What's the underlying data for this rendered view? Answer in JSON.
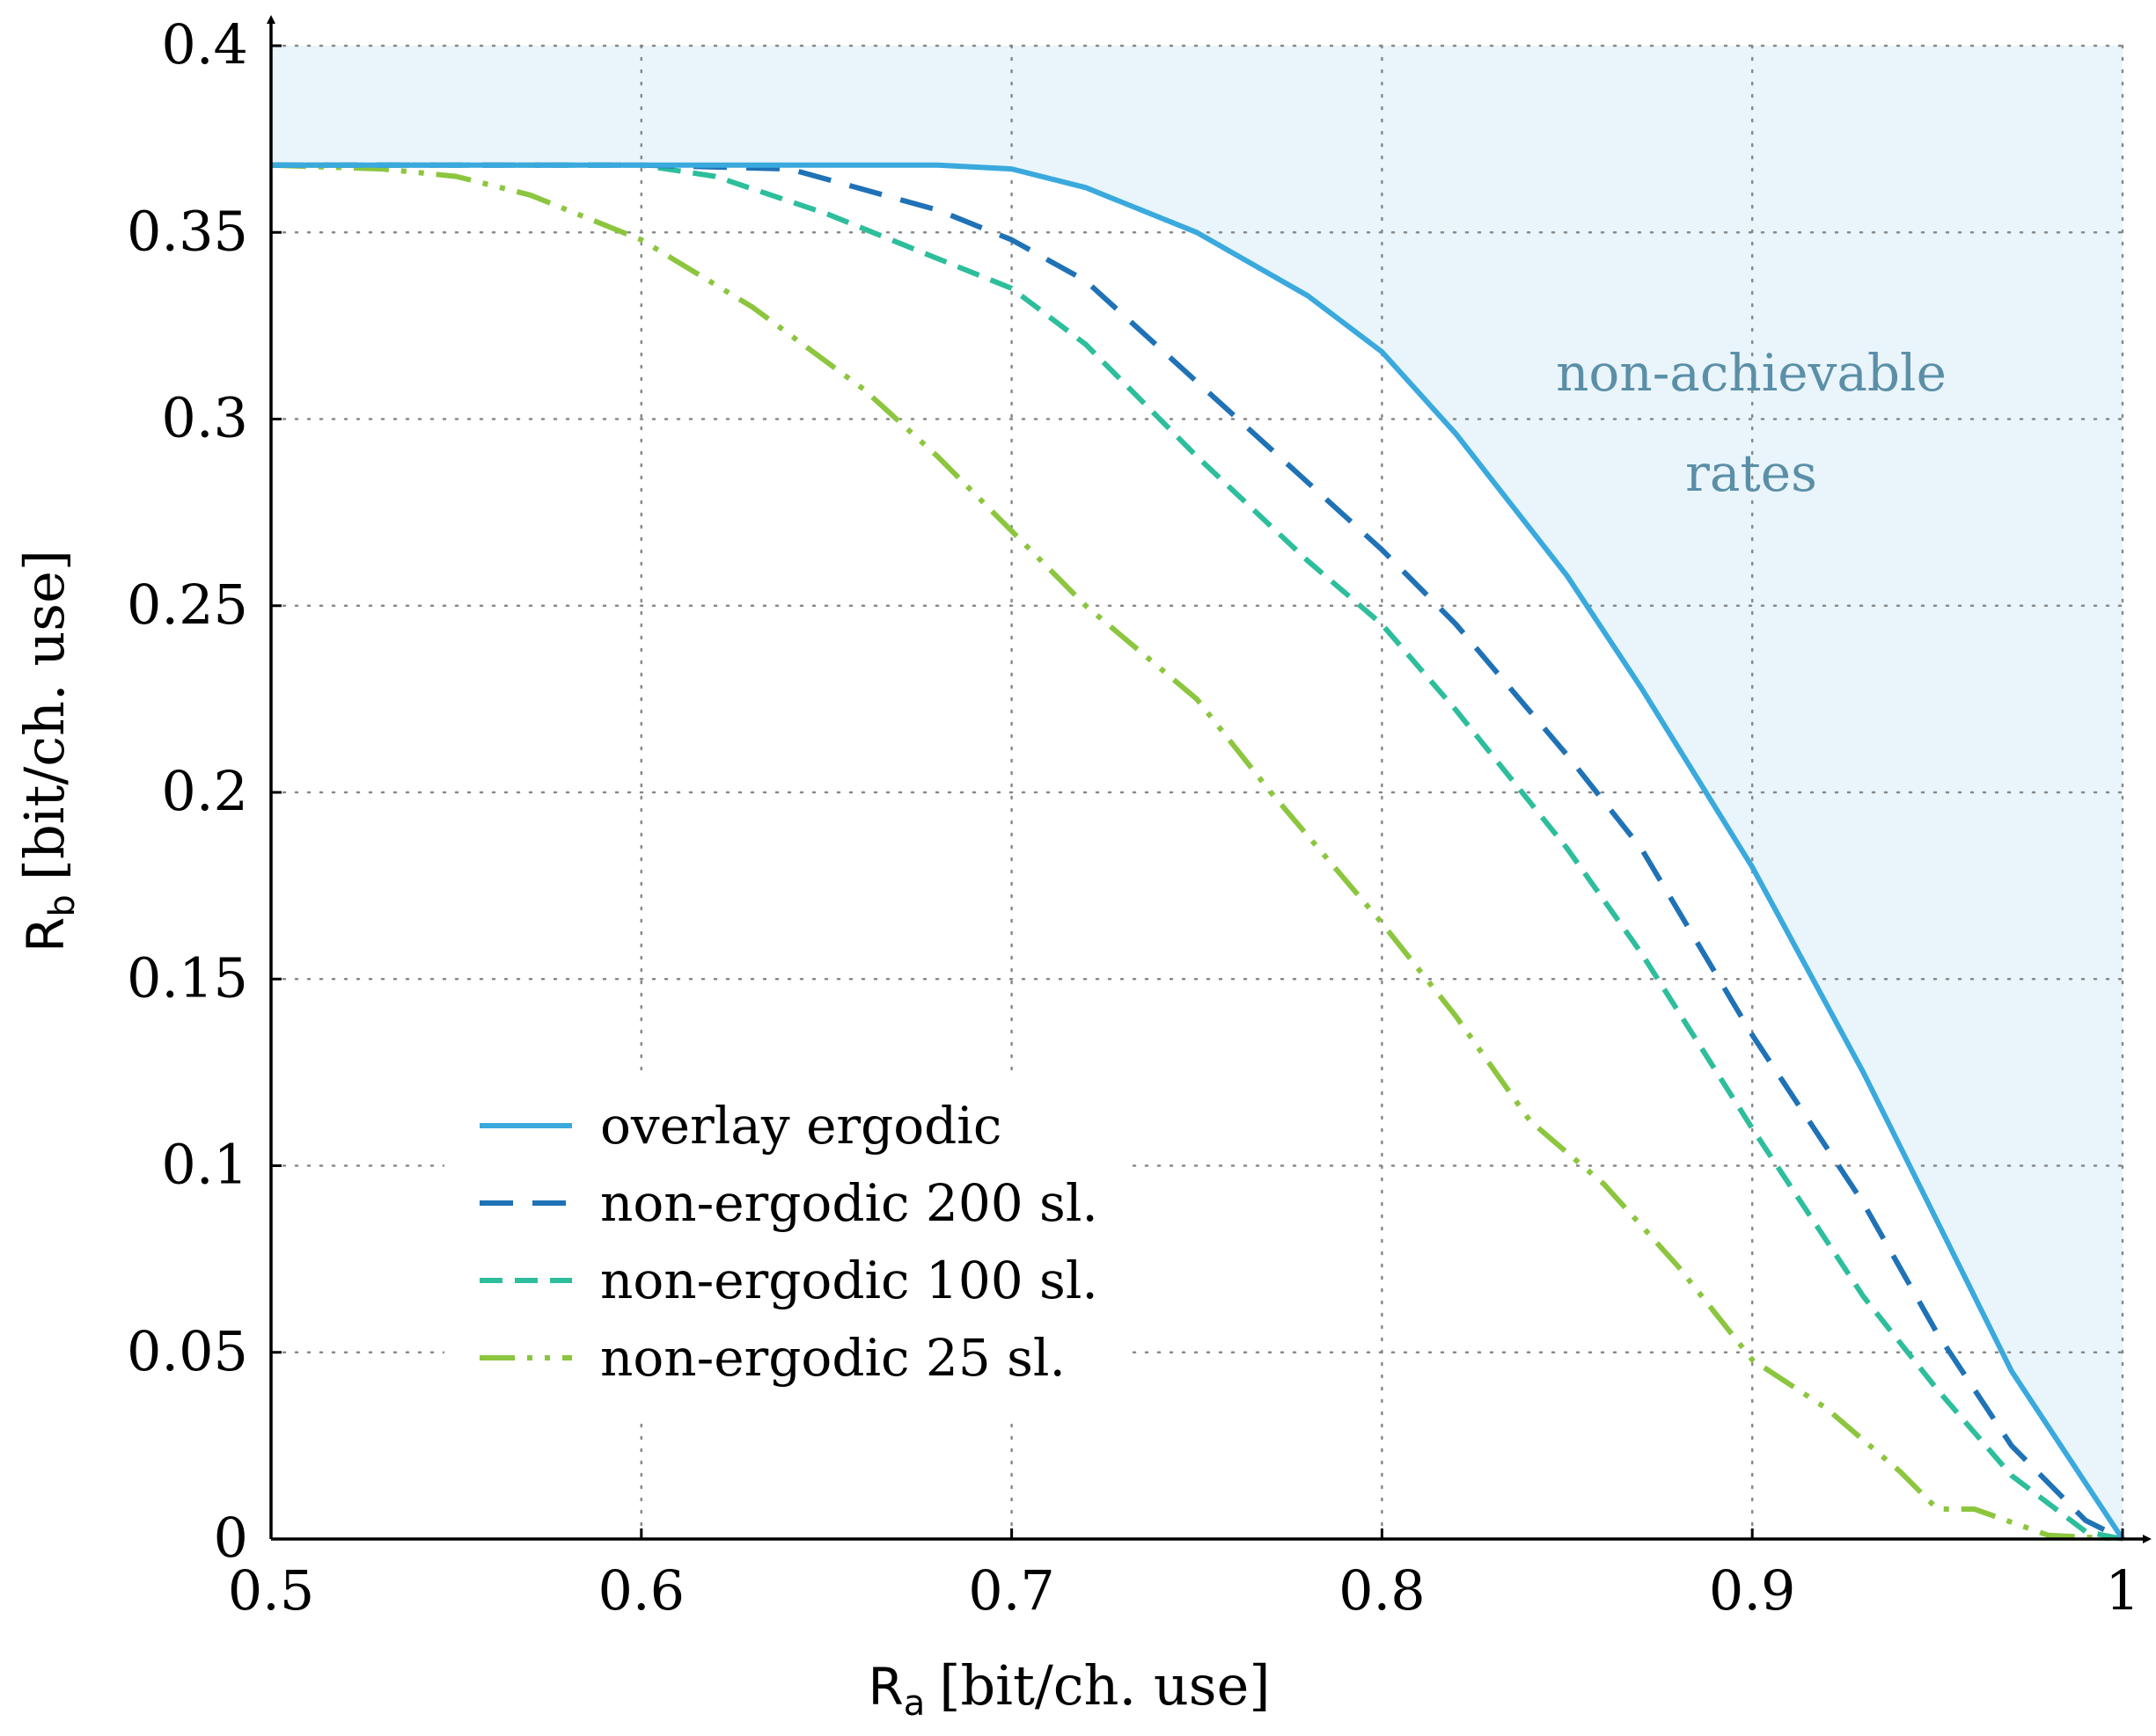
{
  "chart_data": {
    "type": "line",
    "xlabel": {
      "symbol": "R",
      "subscript": "a",
      "unit": "[bit/ch. use]"
    },
    "ylabel": {
      "symbol": "R",
      "subscript": "b",
      "unit": "[bit/ch. use]"
    },
    "xlim": [
      0.5,
      1.0
    ],
    "ylim": [
      0,
      0.4
    ],
    "x_ticks": [
      "0.5",
      "0.6",
      "0.7",
      "0.8",
      "0.9",
      "1"
    ],
    "y_ticks": [
      "0",
      "0.05",
      "0.1",
      "0.15",
      "0.2",
      "0.25",
      "0.3",
      "0.35",
      "0.4"
    ],
    "grid": true,
    "legend_position": "bottom-left",
    "annotation": [
      "non-achievable",
      "rates"
    ],
    "series": [
      {
        "name": "overlay ergodic",
        "color": "#3aa9dd",
        "style": "solid",
        "shade_above": true,
        "shade_color": "#e9f5fb",
        "x": [
          0.5,
          0.6,
          0.68,
          0.7,
          0.72,
          0.75,
          0.78,
          0.8,
          0.82,
          0.85,
          0.87,
          0.9,
          0.93,
          0.95,
          0.97,
          1.0
        ],
        "y": [
          0.368,
          0.368,
          0.368,
          0.367,
          0.362,
          0.35,
          0.333,
          0.318,
          0.296,
          0.258,
          0.228,
          0.18,
          0.125,
          0.085,
          0.045,
          0.0
        ]
      },
      {
        "name": "non-ergodic 200 sl.",
        "color": "#1f72b6",
        "style": "long-dash",
        "x": [
          0.5,
          0.6,
          0.64,
          0.68,
          0.7,
          0.72,
          0.75,
          0.78,
          0.8,
          0.82,
          0.85,
          0.87,
          0.9,
          0.93,
          0.95,
          0.97,
          0.99,
          1.0
        ],
        "y": [
          0.368,
          0.368,
          0.367,
          0.356,
          0.348,
          0.337,
          0.31,
          0.283,
          0.265,
          0.245,
          0.21,
          0.185,
          0.135,
          0.09,
          0.055,
          0.025,
          0.005,
          0.0
        ]
      },
      {
        "name": "non-ergodic 100 sl.",
        "color": "#2dbe9c",
        "style": "dash",
        "x": [
          0.5,
          0.6,
          0.62,
          0.65,
          0.68,
          0.7,
          0.72,
          0.75,
          0.78,
          0.8,
          0.82,
          0.85,
          0.87,
          0.9,
          0.93,
          0.95,
          0.97,
          0.99,
          1.0
        ],
        "y": [
          0.368,
          0.368,
          0.365,
          0.355,
          0.343,
          0.335,
          0.32,
          0.29,
          0.262,
          0.245,
          0.222,
          0.185,
          0.157,
          0.11,
          0.065,
          0.04,
          0.017,
          0.002,
          0.0
        ]
      },
      {
        "name": "non-ergodic 25 sl.",
        "color": "#8cc63f",
        "style": "dash-dot-dot",
        "x": [
          0.5,
          0.53,
          0.55,
          0.57,
          0.6,
          0.63,
          0.66,
          0.68,
          0.7,
          0.72,
          0.75,
          0.77,
          0.8,
          0.82,
          0.84,
          0.86,
          0.88,
          0.9,
          0.92,
          0.94,
          0.95,
          0.96,
          0.98,
          1.0
        ],
        "y": [
          0.368,
          0.367,
          0.365,
          0.36,
          0.348,
          0.33,
          0.308,
          0.29,
          0.27,
          0.25,
          0.225,
          0.2,
          0.165,
          0.14,
          0.112,
          0.095,
          0.073,
          0.048,
          0.035,
          0.018,
          0.008,
          0.008,
          0.001,
          0.0
        ]
      }
    ]
  }
}
